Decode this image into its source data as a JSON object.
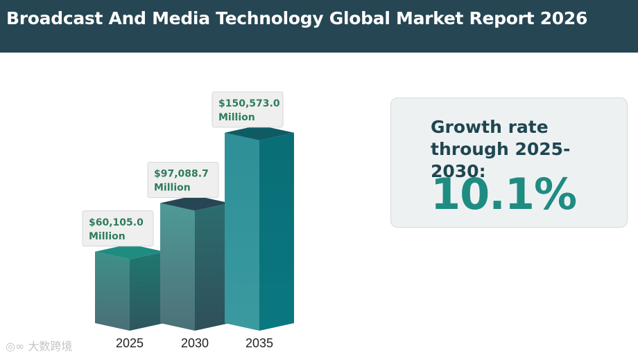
{
  "header": {
    "title": "Broadcast And Media Technology Global Market Report 2026"
  },
  "growth": {
    "label": "Growth rate through 2025-2030:",
    "value": "10.1%"
  },
  "watermark": {
    "text": "大数跨境"
  },
  "colors": {
    "header_bg": "#264653",
    "bar_2025_top": "#1f8c82",
    "bar_2030_top": "#264653",
    "bar_2035_top": "#0e5b63",
    "accent_text": "#1f8c82",
    "label_text": "#2e7d5b"
  },
  "chart_data": {
    "type": "bar",
    "categories": [
      "2025",
      "2030",
      "2035"
    ],
    "values": [
      60105.0,
      97088.7,
      150573.0
    ],
    "data_labels": [
      [
        "$60,105.0",
        "Million"
      ],
      [
        "$97,088.7",
        "Million"
      ],
      [
        "$150,573.0",
        "Million"
      ]
    ],
    "title": "",
    "xlabel": "",
    "ylabel": "",
    "grid": false
  }
}
